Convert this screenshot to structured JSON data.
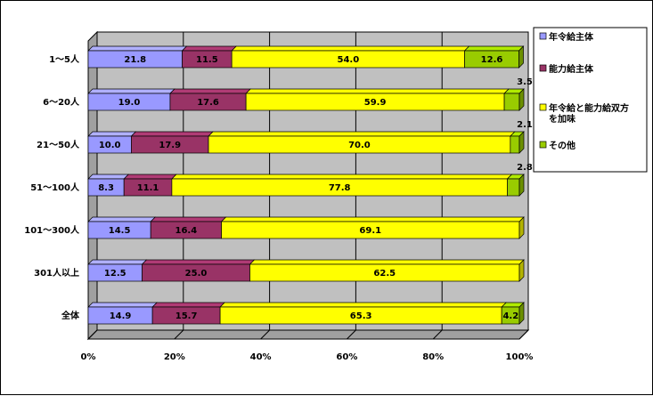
{
  "chart_data": {
    "type": "bar",
    "orientation": "horizontal",
    "stacked": "percent",
    "categories": [
      "1～5人",
      "6～20人",
      "21～50人",
      "51～100人",
      "101～300人",
      "301人以上",
      "全体"
    ],
    "series": [
      {
        "name": "年令給主体",
        "color": "#9999ff",
        "values": [
          21.8,
          19.0,
          10.0,
          8.3,
          14.5,
          12.5,
          14.9
        ]
      },
      {
        "name": "能力給主体",
        "color": "#993366",
        "values": [
          11.5,
          17.6,
          17.9,
          11.1,
          16.4,
          25.0,
          15.7
        ]
      },
      {
        "name": "年令給と能力給双方を加味",
        "color": "#ffff00",
        "values": [
          54.0,
          59.9,
          70.0,
          77.8,
          69.1,
          62.5,
          65.3
        ]
      },
      {
        "name": "その他",
        "color": "#99cc00",
        "values": [
          12.6,
          3.5,
          2.1,
          2.8,
          null,
          null,
          4.2
        ]
      }
    ],
    "value_labels": [
      [
        "21.8",
        "11.5",
        "54.0",
        "12.6"
      ],
      [
        "19.0",
        "17.6",
        "59.9",
        "3.5"
      ],
      [
        "10.0",
        "17.9",
        "70.0",
        "2.1"
      ],
      [
        "8.3",
        "11.1",
        "77.8",
        "2.8"
      ],
      [
        "14.5",
        "16.4",
        "69.1",
        ""
      ],
      [
        "12.5",
        "25.0",
        "62.5",
        ""
      ],
      [
        "14.9",
        "15.7",
        "65.3",
        "4.2"
      ]
    ],
    "xlim": [
      0,
      100
    ],
    "xticks": [
      "0%",
      "20%",
      "40%",
      "60%",
      "80%",
      "100%"
    ],
    "grid": true,
    "legend": {
      "position": "right",
      "entries": [
        {
          "lines": [
            "年令給主体"
          ],
          "color": "#9999ff"
        },
        {
          "lines": [
            "能力給主体"
          ],
          "color": "#993366"
        },
        {
          "lines": [
            "年令給と能力給双方",
            "を加味"
          ],
          "color": "#ffff00"
        },
        {
          "lines": [
            "その他"
          ],
          "color": "#99cc00"
        }
      ]
    },
    "wall_color": "#c0c0c0"
  }
}
